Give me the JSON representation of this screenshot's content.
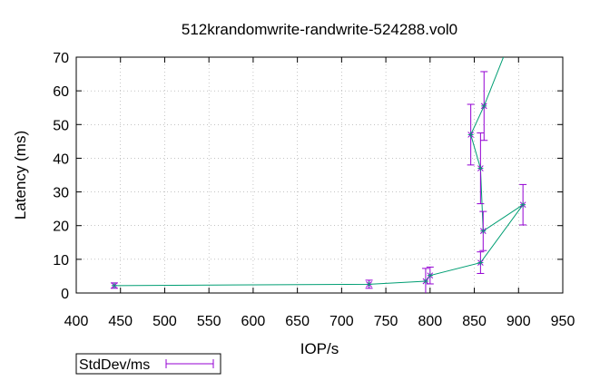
{
  "chart_data": {
    "type": "line",
    "title": "512krandomwrite-randwrite-524288.vol0",
    "xlabel": "IOP/s",
    "ylabel": "Latency (ms)",
    "xlim": [
      400,
      950
    ],
    "ylim": [
      0,
      70
    ],
    "xticks": [
      400,
      450,
      500,
      550,
      600,
      650,
      700,
      750,
      800,
      850,
      900,
      950
    ],
    "yticks": [
      0,
      10,
      20,
      30,
      40,
      50,
      60,
      70
    ],
    "grid": true,
    "legend_position": "bottom-left",
    "series": [
      {
        "name": "StdDev/ms",
        "color": "#9400d3",
        "line_color": "#009e73",
        "points": [
          {
            "x": 443,
            "y": 2.2,
            "err": 0.8
          },
          {
            "x": 731,
            "y": 2.6,
            "err": 1.2
          },
          {
            "x": 795,
            "y": 3.5,
            "err": 3.8
          },
          {
            "x": 800,
            "y": 5.2,
            "err": 2.5
          },
          {
            "x": 857,
            "y": 9.0,
            "err": 3.2
          },
          {
            "x": 905,
            "y": 26.2,
            "err": 6.0
          },
          {
            "x": 860,
            "y": 18.4,
            "err": 5.8
          },
          {
            "x": 857,
            "y": 37.0,
            "err": 10.5
          },
          {
            "x": 846,
            "y": 47.0,
            "err": 9.0
          },
          {
            "x": 861,
            "y": 55.5,
            "err": 10.2
          },
          {
            "x": 895,
            "y": 78.0,
            "err": 0
          }
        ]
      }
    ]
  }
}
